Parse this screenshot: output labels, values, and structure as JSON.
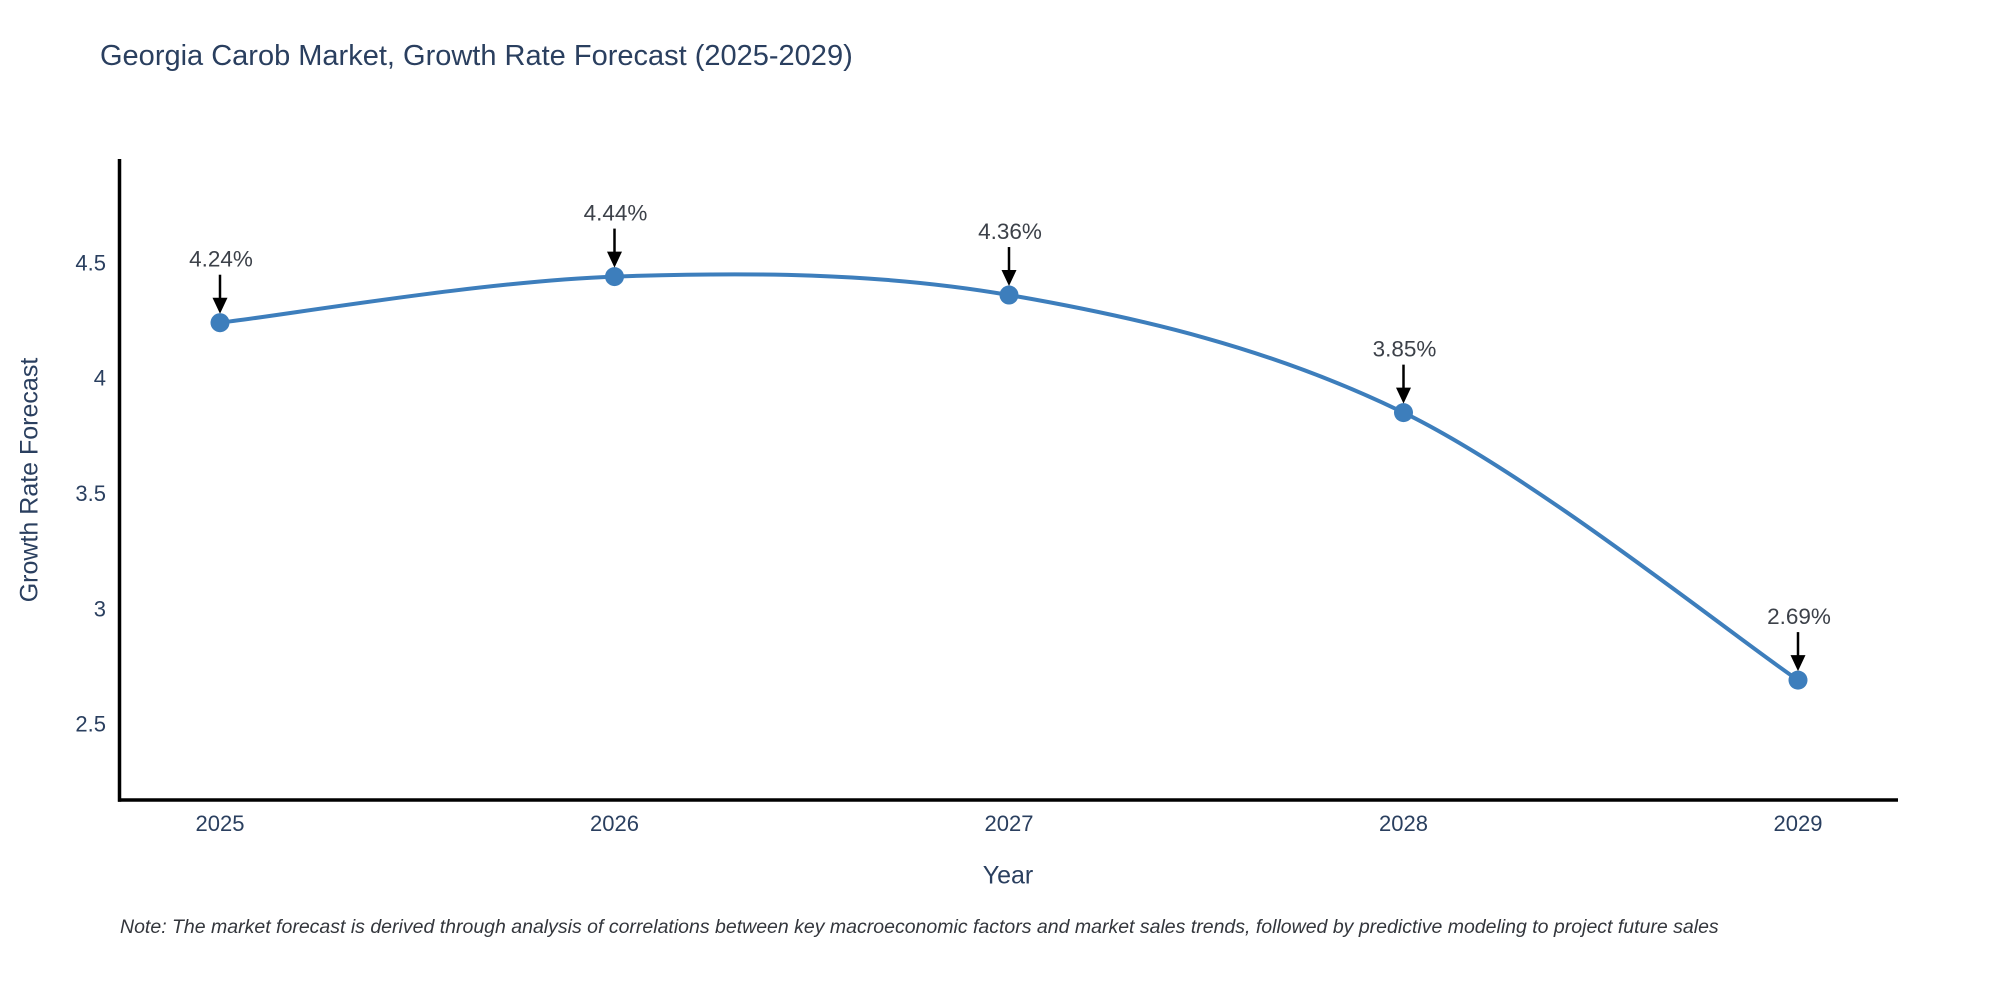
{
  "page": {
    "background_color": "#ffffff"
  },
  "note": {
    "text": "Note: The market forecast is derived through analysis of correlations between key macroeconomic factors and market sales trends, followed by predictive modeling to project future sales"
  },
  "chart_data": {
    "type": "line",
    "title": "Georgia Carob Market, Growth Rate Forecast (2025-2029)",
    "xlabel": "Year",
    "ylabel": "Growth Rate Forecast",
    "x": [
      2025,
      2026,
      2027,
      2028,
      2029
    ],
    "y": [
      4.24,
      4.44,
      4.36,
      3.85,
      2.69
    ],
    "point_labels": [
      "4.24%",
      "4.44%",
      "4.36%",
      "3.85%",
      "2.69%"
    ],
    "y_ticks": [
      2.5,
      3,
      3.5,
      4,
      4.5
    ],
    "ylim": [
      2.17,
      4.95
    ],
    "grid": false,
    "legend": false,
    "line_shape": "spline",
    "colors": {
      "line": "#3d7ebc",
      "marker": "#3d7ebc",
      "axis": "#000000",
      "title_text": "#2a3f5f",
      "tick_text": "#2a3f5f",
      "annotation_text": "#3c4149",
      "annotation_arrow": "#000000"
    }
  }
}
